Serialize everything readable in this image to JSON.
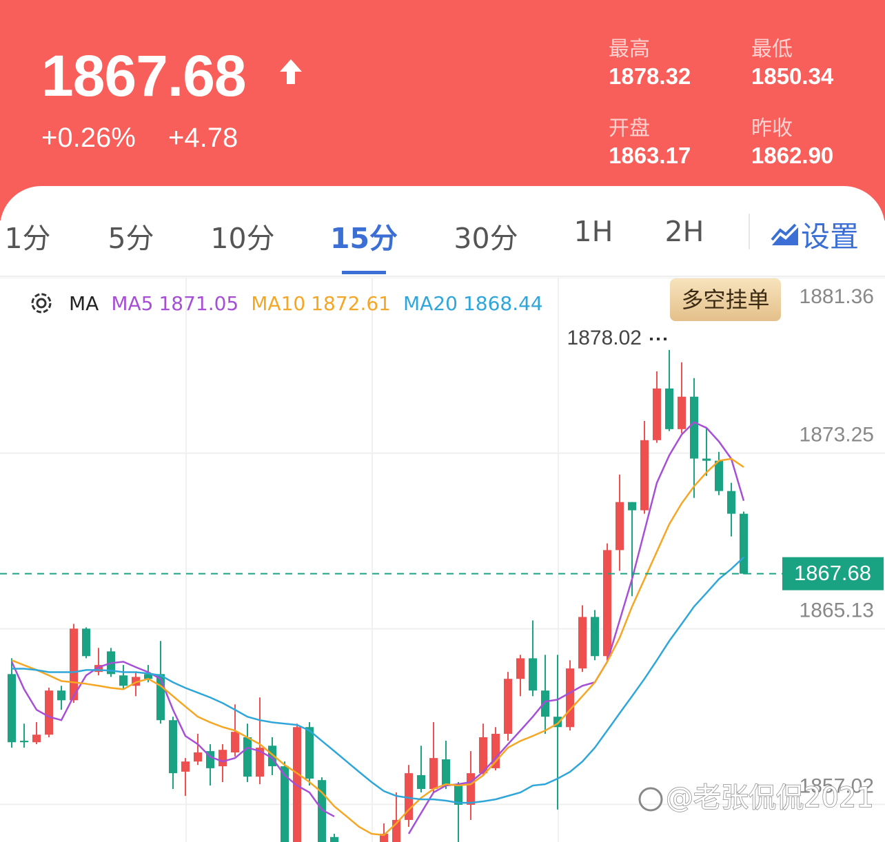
{
  "header": {
    "price": "1867.68",
    "change_pct": "+0.26%",
    "change": "+4.78",
    "stats": [
      {
        "label": "最高",
        "value": "1878.32"
      },
      {
        "label": "最低",
        "value": "1850.34"
      },
      {
        "label": "开盘",
        "value": "1863.17"
      },
      {
        "label": "昨收",
        "value": "1862.90"
      }
    ]
  },
  "tabs": [
    "1分",
    "5分",
    "10分",
    "15分",
    "30分",
    "1H",
    "2H"
  ],
  "active_tab": 3,
  "settings_label": "设置",
  "order_button": "多空挂单",
  "watermark": "@老张侃侃2021",
  "chart_data": {
    "type": "candlestick",
    "indicator_label": "MA",
    "ylim": [
      1855.28,
      1881.36
    ],
    "yticks": [
      1881.36,
      1873.25,
      1865.13,
      1857.02
    ],
    "grid": true,
    "up_color": "#ee4f4f",
    "down_color": "#1aa383",
    "open": [
      1863.04,
      1859.96,
      1859.89,
      1860.24,
      1862.28,
      1861.83,
      1865.14,
      1863.14,
      1864.09,
      1862.98,
      1862.5,
      1863.04,
      1863.04,
      1860.91,
      1858.53,
      1859.0,
      1859.48,
      1858.78,
      1859.42,
      1860.12,
      1858.3,
      1859.73,
      1858.78,
      1854.9,
      1860.59,
      1858.14,
      1855.51,
      null,
      null,
      null,
      1854.9,
      1855.0,
      1856.3,
      1858.37,
      1857.73,
      1859.1,
      1857.89,
      1857.0,
      1858.46,
      1858.69,
      1860.28,
      1862.82,
      1863.77,
      1862.28,
      1861.07,
      1860.59,
      1863.3,
      1865.68,
      1863.87,
      1868.77,
      1870.99,
      1870.61,
      1873.85,
      1876.24,
      1874.36,
      1875.86,
      1873.0,
      1872.9,
      1871.5,
      1870.45
    ],
    "high": [
      1863.77,
      1860.75,
      1860.82,
      1862.41,
      1862.5,
      1865.36,
      1865.2,
      1864.25,
      1864.25,
      1863.46,
      1863.14,
      1863.46,
      1864.57,
      1861.07,
      1859.16,
      1860.28,
      1859.8,
      1859.8,
      1861.64,
      1860.75,
      1861.96,
      1860.12,
      1859.0,
      1860.75,
      1860.82,
      1858.27,
      1855.66,
      null,
      null,
      null,
      1856.14,
      1857.57,
      1858.84,
      1859.73,
      1860.82,
      1859.96,
      1858.05,
      1859.48,
      1860.75,
      1860.59,
      1863.14,
      1863.93,
      1865.52,
      1863.93,
      1863.93,
      1863.68,
      1866.22,
      1866.0,
      1869.08,
      1872.26,
      1870.99,
      1874.74,
      1877.03,
      1878.02,
      1877.45,
      1876.72,
      1874.43,
      1873.31,
      1871.88,
      1870.55
    ],
    "low": [
      1859.64,
      1859.64,
      1859.8,
      1860.12,
      1861.39,
      1861.71,
      1863.77,
      1862.98,
      1862.91,
      1862.34,
      1862.02,
      1862.66,
      1860.75,
      1857.73,
      1857.41,
      1858.84,
      1857.89,
      1858.05,
      1859.23,
      1858.05,
      1857.95,
      1858.37,
      1854.8,
      1854.7,
      1857.89,
      1854.8,
      1854.9,
      null,
      null,
      null,
      1854.8,
      1854.8,
      1855.98,
      1857.57,
      1857.57,
      1857.73,
      1854.8,
      1856.3,
      1858.37,
      1858.59,
      1859.96,
      1862.02,
      1862.02,
      1860.28,
      1856.78,
      1860.43,
      1863.14,
      1863.68,
      1863.68,
      1867.81,
      1866.64,
      1870.45,
      1873.73,
      1874.27,
      1874.17,
      1871.18,
      1872.2,
      1871.31,
      1869.4,
      1867.65
    ],
    "close": [
      1859.89,
      1859.89,
      1860.24,
      1862.28,
      1861.83,
      1865.14,
      1863.87,
      1863.46,
      1863.04,
      1862.5,
      1862.91,
      1862.82,
      1860.91,
      1858.46,
      1859.0,
      1859.42,
      1858.69,
      1859.54,
      1860.37,
      1858.3,
      1859.64,
      1858.78,
      1855.0,
      1860.59,
      1858.21,
      1855.0,
      1855.1,
      null,
      null,
      null,
      1855.66,
      1856.3,
      1858.46,
      1857.73,
      1859.16,
      1857.89,
      1857.0,
      1858.46,
      1860.12,
      1860.28,
      1862.82,
      1863.77,
      1862.28,
      1861.07,
      1860.59,
      1863.3,
      1865.68,
      1863.87,
      1868.77,
      1870.99,
      1870.61,
      1873.85,
      1876.24,
      1874.36,
      1875.86,
      1873.0,
      1872.9,
      1871.5,
      1870.45,
      1867.68
    ],
    "series": [
      {
        "name": "MA5",
        "color": "#a64fd6",
        "values": [
          1863.61,
          1862.34,
          1861.39,
          1861.07,
          1860.91,
          1862.02,
          1862.98,
          1863.36,
          1863.55,
          1863.61,
          1863.36,
          1863.13,
          1862.82,
          1861.39,
          1860.18,
          1859.8,
          1859.22,
          1859.0,
          1859.16,
          1859.64,
          1859.48,
          1859.16,
          1858.36,
          1857.89,
          1857.57,
          1856.77,
          1856.46,
          null,
          null,
          null,
          null,
          null,
          1855.66,
          1856.62,
          1857.57,
          1857.89,
          1857.95,
          1858.05,
          1858.52,
          1859.16,
          1859.8,
          1860.43,
          1861.07,
          1861.77,
          1861.86,
          1862.18,
          1862.5,
          1862.66,
          1863.61,
          1865.52,
          1867.43,
          1869.65,
          1871.88,
          1873.15,
          1874.11,
          1874.68,
          1874.42,
          1873.79,
          1872.99,
          1871.05
        ]
      },
      {
        "name": "MA10",
        "color": "#f5a623",
        "values": [
          1863.68,
          1863.45,
          1863.23,
          1862.98,
          1862.72,
          1862.66,
          1862.59,
          1862.5,
          1862.4,
          1862.34,
          1862.66,
          1862.82,
          1862.5,
          1862.02,
          1861.54,
          1861.07,
          1860.81,
          1860.59,
          1860.43,
          1860.11,
          1859.8,
          1859.32,
          1858.84,
          1858.46,
          1858.05,
          1857.57,
          1856.93,
          1856.46,
          1855.98,
          1855.66,
          1855.6,
          1856.14,
          1856.77,
          1857.32,
          1857.73,
          1857.95,
          1857.89,
          1857.95,
          1858.36,
          1859.0,
          1859.64,
          1859.95,
          1860.18,
          1860.43,
          1860.75,
          1861.39,
          1862.02,
          1862.66,
          1863.61,
          1864.72,
          1866.16,
          1867.43,
          1868.7,
          1869.97,
          1870.93,
          1871.72,
          1872.36,
          1872.9,
          1872.99,
          1872.61
        ]
      },
      {
        "name": "MA20",
        "color": "#2fa6d9",
        "values": [
          1863.29,
          1863.29,
          1863.23,
          1863.13,
          1863.13,
          1863.13,
          1863.23,
          1863.23,
          1863.2,
          1863.13,
          1863.13,
          1863.07,
          1862.98,
          1862.66,
          1862.4,
          1862.18,
          1861.96,
          1861.7,
          1861.39,
          1861.07,
          1860.91,
          1860.81,
          1860.75,
          1860.69,
          1860.43,
          1859.95,
          1859.48,
          1859.0,
          1858.52,
          1858.05,
          1857.63,
          1857.41,
          1857.32,
          1857.25,
          1857.25,
          1857.19,
          1857.09,
          1857.09,
          1857.16,
          1857.25,
          1857.41,
          1857.57,
          1857.89,
          1857.95,
          1858.21,
          1858.52,
          1859.0,
          1859.64,
          1860.43,
          1861.23,
          1862.02,
          1862.82,
          1863.68,
          1864.57,
          1865.36,
          1866.16,
          1866.79,
          1867.43,
          1867.9,
          1868.44
        ]
      }
    ]
  }
}
